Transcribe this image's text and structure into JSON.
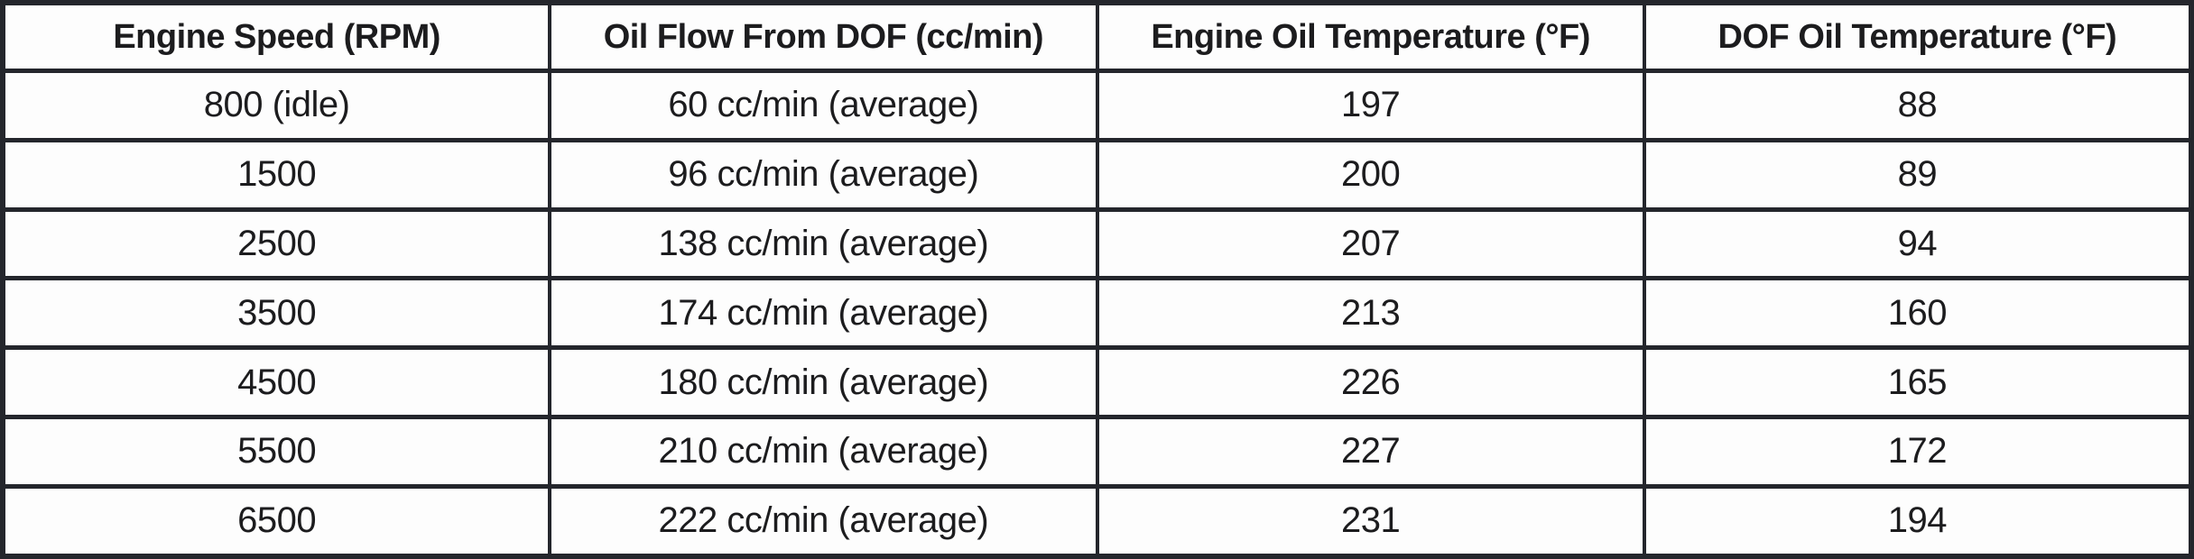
{
  "colors": {
    "border": "#24262c",
    "text": "#1c1c1e",
    "cell_background": "#fdfdfd"
  },
  "table": {
    "columns": [
      "Engine Speed (RPM)",
      "Oil Flow From DOF (cc/min)",
      "Engine Oil Temperature (°F)",
      "DOF Oil Temperature (°F)"
    ],
    "rows": [
      [
        "800 (idle)",
        "60 cc/min (average)",
        "197",
        "88"
      ],
      [
        "1500",
        "96 cc/min (average)",
        "200",
        "89"
      ],
      [
        "2500",
        "138 cc/min (average)",
        "207",
        "94"
      ],
      [
        "3500",
        "174 cc/min (average)",
        "213",
        "160"
      ],
      [
        "4500",
        "180 cc/min (average)",
        "226",
        "165"
      ],
      [
        "5500",
        "210 cc/min (average)",
        "227",
        "172"
      ],
      [
        "6500",
        "222 cc/min (average)",
        "231",
        "194"
      ]
    ]
  }
}
